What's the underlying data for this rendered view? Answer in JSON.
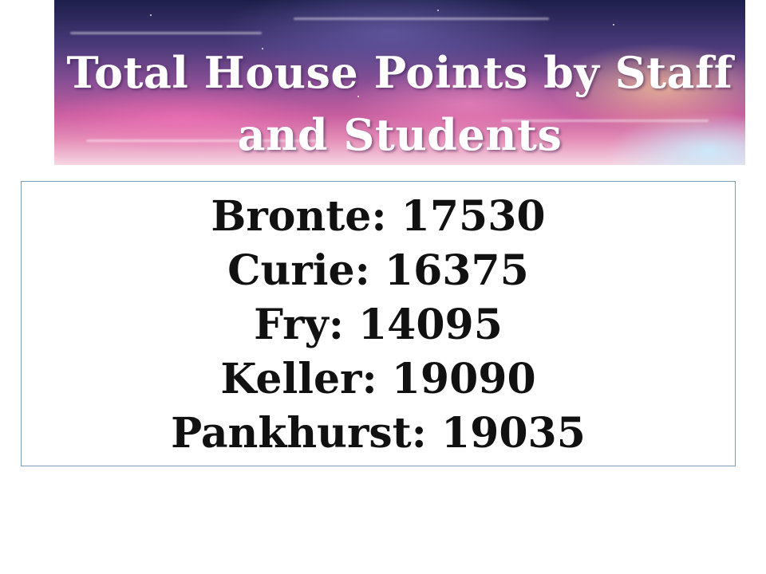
{
  "slide": {
    "title": "Total House Points by Staff and Students",
    "title_lines": [
      "Total House Points by Staff",
      "and Students"
    ],
    "houses": [
      {
        "name": "Bronte",
        "points": "17530"
      },
      {
        "name": "Curie",
        "points": "16375"
      },
      {
        "name": "Fry",
        "points": "14095"
      },
      {
        "name": "Keller",
        "points": "19090"
      },
      {
        "name": "Pankhurst",
        "points": "19035"
      }
    ]
  },
  "colors": {
    "title_text": "#ffffff",
    "body_text": "#111111",
    "box_border": "#7c9bb5",
    "banner_top": "#1d1f4a",
    "banner_pink": "#c85e9f"
  }
}
